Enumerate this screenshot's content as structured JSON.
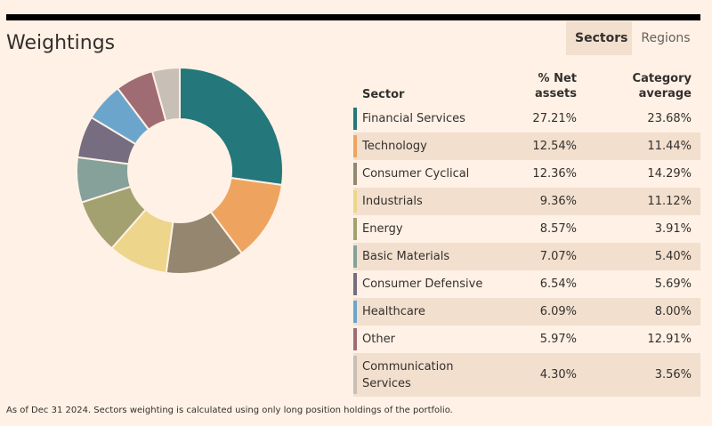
{
  "header": {
    "title": "Weightings"
  },
  "tabs": [
    {
      "label": "Sectors",
      "active": true
    },
    {
      "label": "Regions",
      "active": false
    }
  ],
  "table": {
    "headers": {
      "sector": "Sector",
      "net_line1": "% Net",
      "net_line2": "assets",
      "cat_line1": "Category",
      "cat_line2": "average"
    }
  },
  "chart_data": {
    "type": "pie",
    "donut": true,
    "categories": [
      "Financial Services",
      "Technology",
      "Consumer Cyclical",
      "Industrials",
      "Energy",
      "Basic Materials",
      "Consumer Defensive",
      "Healthcare",
      "Other",
      "Communication Services"
    ],
    "values": [
      27.21,
      12.54,
      12.36,
      9.36,
      8.57,
      7.07,
      6.54,
      6.09,
      5.97,
      4.3
    ],
    "value_labels": [
      "27.21%",
      "12.54%",
      "12.36%",
      "9.36%",
      "8.57%",
      "7.07%",
      "6.54%",
      "6.09%",
      "5.97%",
      "4.30%"
    ],
    "category_average": [
      "23.68%",
      "11.44%",
      "14.29%",
      "11.12%",
      "3.91%",
      "5.40%",
      "5.69%",
      "8.00%",
      "12.91%",
      "3.56%"
    ],
    "colors": [
      "#24777b",
      "#eea45f",
      "#958670",
      "#edd58b",
      "#a4a170",
      "#86a09a",
      "#766d80",
      "#6ca5cc",
      "#a06c74",
      "#c8bfb7"
    ]
  },
  "footnote": "As of Dec 31 2024. Sectors weighting is calculated using only long position holdings of the portfolio."
}
